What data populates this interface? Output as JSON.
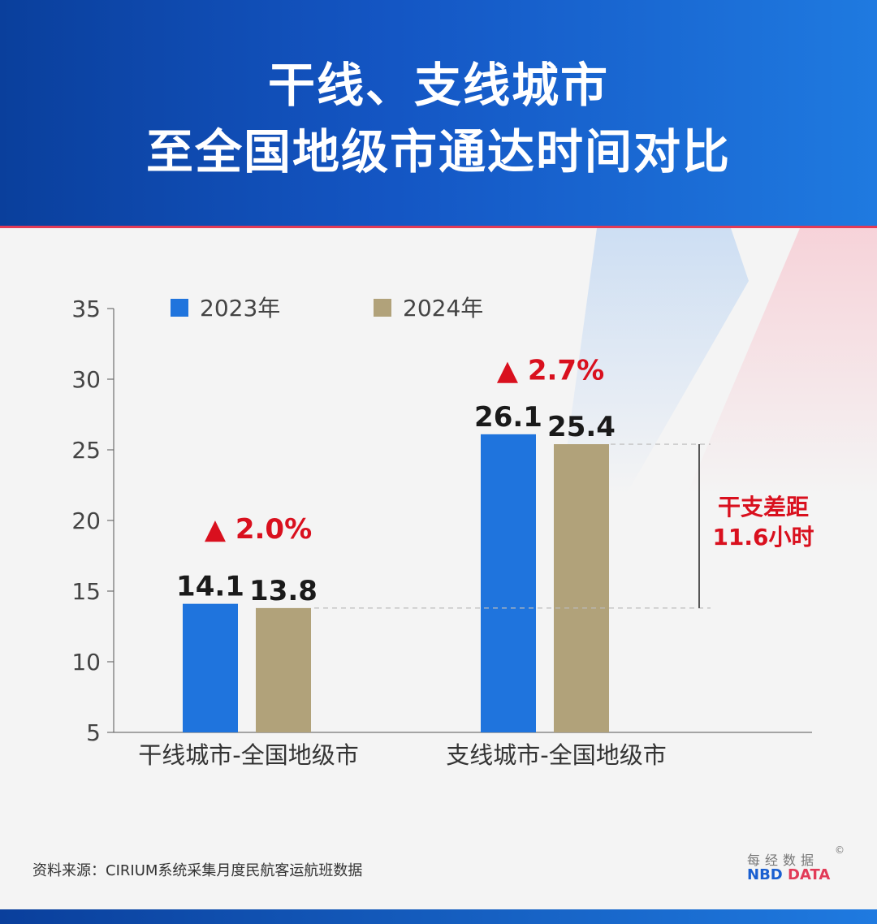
{
  "header": {
    "title_line1": "干线、支线城市",
    "title_line2": "至全国地级市通达时间对比"
  },
  "chart_data": {
    "type": "bar",
    "categories": [
      "干线城市-全国地级市",
      "支线城市-全国地级市"
    ],
    "series": [
      {
        "name": "2023年",
        "color": "#1f74dd",
        "values": [
          14.1,
          26.1
        ]
      },
      {
        "name": "2024年",
        "color": "#b1a27a",
        "values": [
          13.8,
          25.4
        ]
      }
    ],
    "data_labels": [
      [
        "14.1",
        "13.8"
      ],
      [
        "26.1",
        "25.4"
      ]
    ],
    "ylim": [
      5,
      35
    ],
    "yticks": [
      5,
      10,
      15,
      20,
      25,
      30,
      35
    ],
    "legend_position": "top",
    "annotations": {
      "changes": [
        "▲ 2.0%",
        "▲ 2.7%"
      ],
      "change_color": "#d9101e",
      "gap_line1": "干支差距",
      "gap_line2": "11.6小时"
    }
  },
  "footer": {
    "source": "资料来源：CIRIUM系统采集月度民航客运航班数据",
    "logo_cn": "每经数据",
    "logo_copyright": "©",
    "logo_nbd": "NBD",
    "logo_data": "DATA"
  }
}
